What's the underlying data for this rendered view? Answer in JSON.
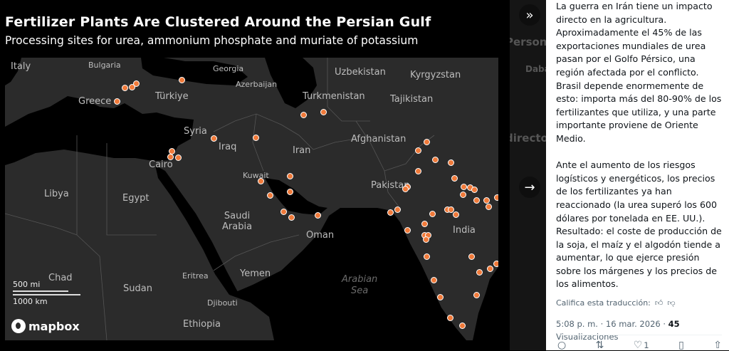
{
  "chart": {
    "title": "Fertilizer Plants Are Clustered Around the Persian Gulf",
    "subtitle": "Processing sites for urea, ammonium phosphate and muriate of potassium",
    "labels": {
      "italy": "Italy",
      "bulgaria": "Bulgaria",
      "georgia": "Georgia",
      "azerbaijan": "Azerbaijan",
      "uzbekistan": "Uzbekistan",
      "kyrgyzstan": "Kyrgyzstan",
      "greece": "Greece",
      "turkiye": "Türkiye",
      "turkmenistan": "Turkmenistan",
      "tajikistan": "Tajikistan",
      "syria": "Syria",
      "iraq": "Iraq",
      "iran": "Iran",
      "afghanistan": "Afghanistan",
      "cairo": "Cairo",
      "kuwait": "Kuwait",
      "libya": "Libya",
      "egypt": "Egypt",
      "pakistan": "Pakistan",
      "saudi": "Saudi\nArabia",
      "india": "India",
      "oman": "Oman",
      "chad": "Chad",
      "eritrea": "Eritrea",
      "yemen": "Yemen",
      "sudan": "Sudan",
      "arabian_sea": "Arabian\nSea",
      "djibouti": "Djibouti",
      "ethiopia": "Ethiopia"
    },
    "scale_mi": "500 mi",
    "scale_km": "1000 km",
    "attribution": "mapbox",
    "dot_color": "#f07a3a"
  },
  "background_page": {
    "fragments": [
      "Personas",
      "Daba",
      "directo"
    ]
  },
  "nav": {
    "collapse_icon": "»",
    "next_icon": "→"
  },
  "tweet": {
    "text": "La guerra en Irán tiene un impacto directo en la agricultura.\nAproximadamente el 45% de las exportaciones mundiales de urea pasan por el Golfo Pérsico, una región afectada por el conflicto.\nBrasil depende enormemente de esto: importa más del 80-90% de los fertilizantes que utiliza, y una parte importante proviene de Oriente Medio.\n\nAnte el aumento de los riesgos logísticos y energéticos, los precios de los fertilizantes ya han reaccionado (la urea superó los 600 dólares por tonelada en EE. UU.).\nResultado: el coste de producción de la soja, el maíz y el algodón tiende a aumentar, lo que ejerce presión sobre los márgenes y los precios de los alimentos.",
    "rate_label": "Califica esta traducción:",
    "timestamp": "5:08 p. m. · 16 mar. 2026 · ",
    "views_count": "45",
    "views_label": "Visualizaciones",
    "likes": "1"
  }
}
